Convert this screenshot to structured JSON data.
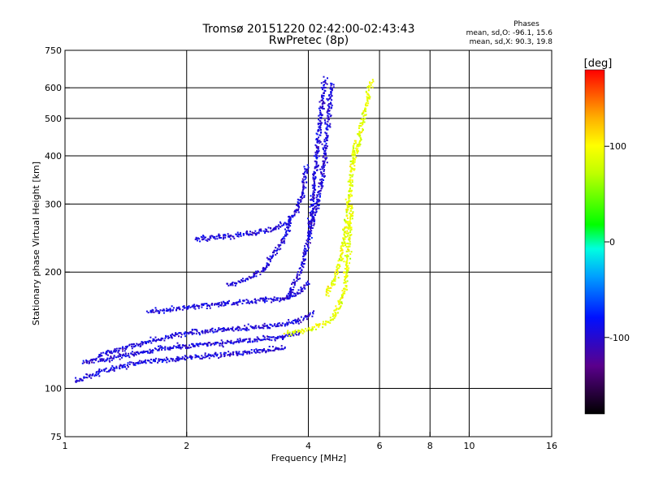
{
  "header": {
    "title": "Tromsø 20151220 02:42:00-02:43:43",
    "subtitle": "RwPretec (8p)",
    "phases_label": "Phases",
    "phases_o": "mean, sd,O: -96.1, 15.6",
    "phases_x": "mean, sd,X:  90.3, 19.8"
  },
  "chart_data": {
    "type": "scatter",
    "xlabel": "Frequency [MHz]",
    "ylabel": "Stationary phase Virtual Height [km]",
    "x_scale": "log",
    "y_scale": "log",
    "xlim": [
      1,
      16
    ],
    "ylim": [
      75,
      750
    ],
    "x_ticks": [
      {
        "value": 1,
        "label": "1"
      },
      {
        "value": 2,
        "label": "2"
      },
      {
        "value": 4,
        "label": "4"
      },
      {
        "value": 6,
        "label": "6"
      },
      {
        "value": 8,
        "label": "8"
      },
      {
        "value": 10,
        "label": "10"
      },
      {
        "value": 16,
        "label": "16"
      }
    ],
    "y_ticks": [
      {
        "value": 75,
        "label": "75"
      },
      {
        "value": 100,
        "label": "100"
      },
      {
        "value": 200,
        "label": "200"
      },
      {
        "value": 300,
        "label": "300"
      },
      {
        "value": 400,
        "label": "400"
      },
      {
        "value": 500,
        "label": "500"
      },
      {
        "value": 600,
        "label": "600"
      },
      {
        "value": 750,
        "label": "750"
      }
    ],
    "grid_x": [
      2,
      4,
      6,
      8,
      10
    ],
    "grid_y": [
      100,
      200,
      300,
      400,
      500,
      600
    ],
    "colorbar": {
      "label": "[deg]",
      "min": -180,
      "max": 180,
      "ticks": [
        {
          "value": 100,
          "label": "100"
        },
        {
          "value": 0,
          "label": "0"
        },
        {
          "value": -100,
          "label": "-100"
        }
      ]
    },
    "series": [
      {
        "mode": "O",
        "phase_mean": -96.1,
        "phase_sd": 15.6,
        "traces": [
          {
            "x": [
              1.05,
              1.2,
              1.4,
              1.6,
              1.9,
              2.3,
              2.7,
              3.1,
              3.5
            ],
            "y": [
              105,
              110,
              115,
              118,
              120,
              122,
              124,
              126,
              128
            ]
          },
          {
            "x": [
              1.1,
              1.3,
              1.5,
              1.8,
              2.1,
              2.5,
              2.9,
              3.4,
              3.8
            ],
            "y": [
              118,
              120,
              124,
              128,
              130,
              132,
              134,
              136,
              140
            ]
          },
          {
            "x": [
              1.2,
              1.4,
              1.7,
              2.0,
              2.4,
              2.8,
              3.3,
              3.8,
              4.1
            ],
            "y": [
              122,
              128,
              135,
              140,
              142,
              144,
              146,
              150,
              158
            ]
          },
          {
            "x": [
              1.6,
              1.9,
              2.3,
              2.7,
              3.1,
              3.5,
              3.8,
              4.0
            ],
            "y": [
              158,
              162,
              165,
              168,
              170,
              172,
              178,
              190
            ]
          },
          {
            "x": [
              2.1,
              2.4,
              2.8,
              3.2,
              3.5,
              3.7,
              3.85,
              3.95
            ],
            "y": [
              245,
              248,
              252,
              258,
              268,
              285,
              320,
              380
            ]
          },
          {
            "x": [
              2.5,
              2.8,
              3.1,
              3.3,
              3.5,
              3.6
            ],
            "y": [
              185,
              192,
              205,
              225,
              250,
              280
            ]
          },
          {
            "x": [
              3.5,
              3.8,
              4.0,
              4.1,
              4.2,
              4.3,
              4.4
            ],
            "y": [
              170,
              200,
              250,
              320,
              420,
              540,
              640
            ]
          },
          {
            "x": [
              4.0,
              4.2,
              4.35,
              4.45,
              4.55
            ],
            "y": [
              250,
              300,
              380,
              480,
              620
            ]
          }
        ]
      },
      {
        "mode": "X",
        "phase_mean": 90.3,
        "phase_sd": 19.8,
        "traces": [
          {
            "x": [
              3.5,
              3.9,
              4.2,
              4.5,
              4.7,
              4.9,
              5.0,
              5.1
            ],
            "y": [
              140,
              142,
              145,
              150,
              160,
              180,
              230,
              300
            ]
          },
          {
            "x": [
              4.4,
              4.6,
              4.8,
              4.9,
              5.0,
              5.1,
              5.2
            ],
            "y": [
              175,
              190,
              220,
              250,
              300,
              360,
              440
            ]
          },
          {
            "x": [
              5.1,
              5.3,
              5.4,
              5.5,
              5.6,
              5.7
            ],
            "y": [
              380,
              430,
              480,
              530,
              580,
              630
            ]
          }
        ]
      }
    ]
  }
}
